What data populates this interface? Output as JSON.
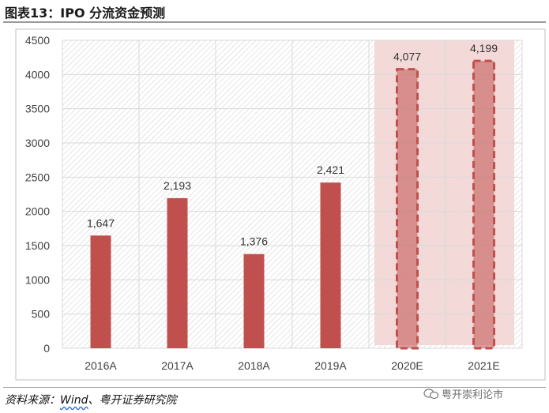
{
  "figure_title": "图表13：IPO 分流资金预测",
  "source_prefix": "资料来源：",
  "source_wind": "Wind",
  "source_rest": "、粤开证券研究院",
  "watermark": "粤开崇利论市",
  "colors": {
    "bar": "#C0504D",
    "forecast_band": "#F2D6D5",
    "grid": "#d9d9d9"
  },
  "chart_data": {
    "type": "bar",
    "categories": [
      "2016A",
      "2017A",
      "2018A",
      "2019A",
      "2020E",
      "2021E"
    ],
    "values": [
      1647,
      2193,
      1376,
      2421,
      4077,
      4199
    ],
    "value_labels": [
      "1,647",
      "2,193",
      "1,376",
      "2,421",
      "4,077",
      "4,199"
    ],
    "forecast": [
      false,
      false,
      false,
      false,
      true,
      true
    ],
    "ylim": [
      0,
      4500
    ],
    "yticks": [
      0,
      500,
      1000,
      1500,
      2000,
      2500,
      3000,
      3500,
      4000,
      4500
    ],
    "grid": true,
    "title": "",
    "xlabel": "",
    "ylabel": ""
  }
}
